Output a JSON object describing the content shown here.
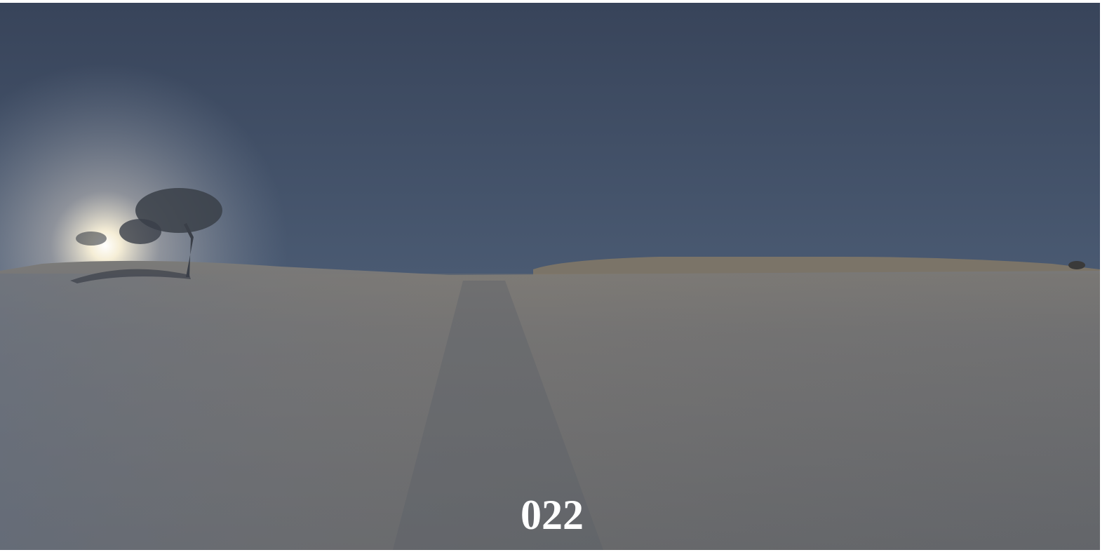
{
  "caption": "022"
}
